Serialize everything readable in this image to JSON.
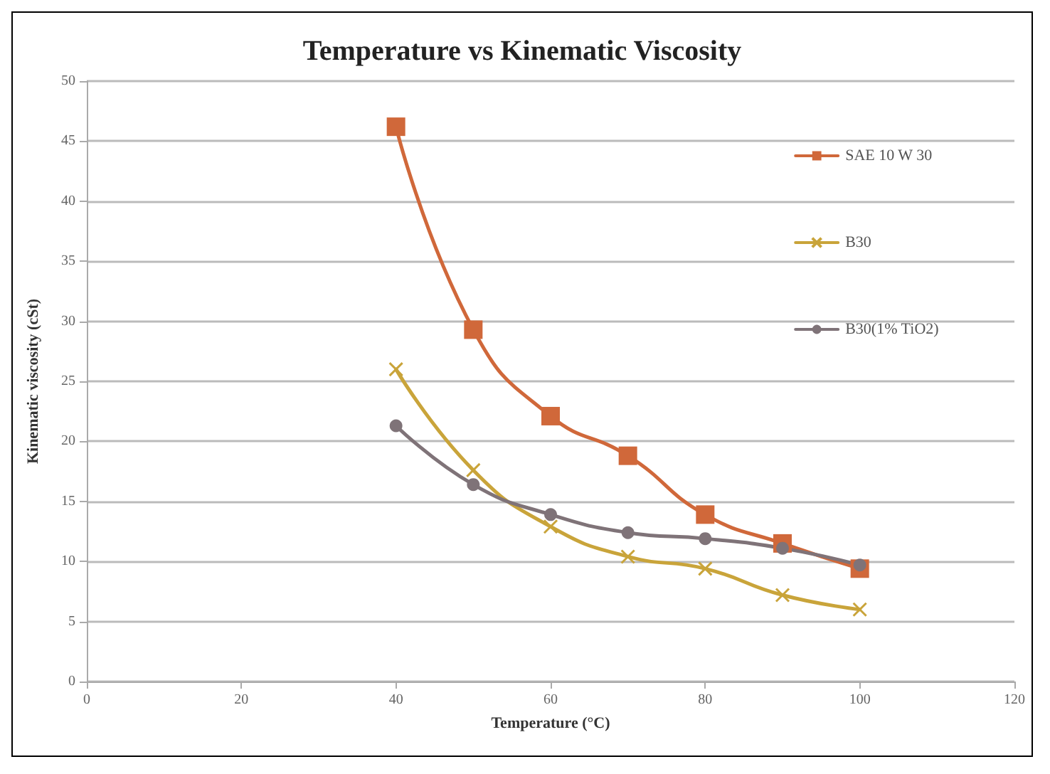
{
  "chart_data": {
    "type": "line",
    "title": "Temperature vs Kinematic Viscosity",
    "xlabel": "Temperature (°C)",
    "ylabel": "Kinematic viscosity (cSt)",
    "x": [
      40,
      50,
      60,
      70,
      80,
      90,
      100
    ],
    "series": [
      {
        "name": "SAE 10 W 30",
        "color": "#d0683a",
        "marker": "square",
        "values": [
          46.2,
          29.3,
          22.1,
          18.8,
          13.9,
          11.5,
          9.4
        ]
      },
      {
        "name": "B30",
        "color": "#c9a43a",
        "marker": "cross",
        "values": [
          26.0,
          17.6,
          12.9,
          10.4,
          9.4,
          7.2,
          6.0
        ]
      },
      {
        "name": "B30(1% TiO2)",
        "color": "#7f7378",
        "marker": "circle",
        "values": [
          21.3,
          16.4,
          13.9,
          12.4,
          11.9,
          11.1,
          9.7
        ]
      }
    ],
    "xlim": [
      0,
      120
    ],
    "xticks": [
      0,
      20,
      40,
      60,
      80,
      100,
      120
    ],
    "ylim": [
      0,
      50
    ],
    "yticks": [
      0,
      5,
      10,
      15,
      20,
      25,
      30,
      35,
      40,
      45,
      50
    ],
    "grid": "y",
    "legend": "right",
    "line_style": "solid"
  }
}
